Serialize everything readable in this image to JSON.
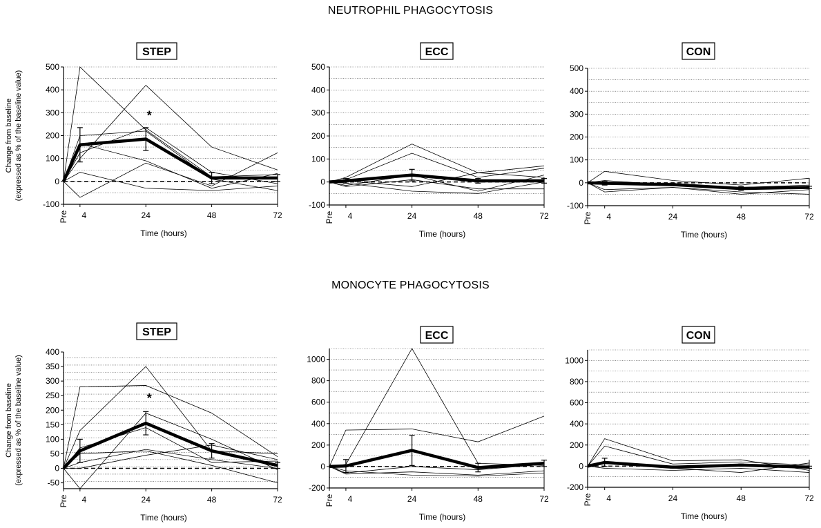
{
  "figure": {
    "section_titles": [
      "NEUTROPHIL PHAGOCYTOSIS",
      "MONOCYTE PHAGOCYTOSIS"
    ],
    "ylabel_lines": [
      "Change from baseline",
      "(expressed as % of the baseline value)"
    ]
  },
  "chart_data": [
    {
      "type": "line",
      "section": "NEUTROPHIL PHAGOCYTOSIS",
      "title": "STEP",
      "xlabel": "Time (hours)",
      "ylabel": "Change from baseline (expressed as % of the baseline value)",
      "x": [
        -6,
        0,
        24,
        48,
        72
      ],
      "xtick_labels": [
        "Pre",
        "4",
        "24",
        "48",
        "72"
      ],
      "ylim": [
        -100,
        500
      ],
      "yticks": [
        -100,
        0,
        100,
        200,
        300,
        400,
        500
      ],
      "grid": true,
      "mean": {
        "values": [
          0,
          160,
          185,
          15,
          15
        ],
        "err": [
          0,
          75,
          50,
          25,
          15
        ]
      },
      "individual": [
        [
          0,
          505,
          225,
          20,
          30
        ],
        [
          0,
          100,
          420,
          150,
          50
        ],
        [
          0,
          -70,
          80,
          -20,
          125
        ],
        [
          0,
          165,
          90,
          -30,
          35
        ],
        [
          0,
          125,
          235,
          40,
          -10
        ],
        [
          0,
          200,
          220,
          10,
          -40
        ],
        [
          0,
          40,
          -30,
          -40,
          -20
        ]
      ],
      "significant": [
        {
          "x": 24,
          "y": 300,
          "label": "*"
        }
      ]
    },
    {
      "type": "line",
      "section": "NEUTROPHIL PHAGOCYTOSIS",
      "title": "ECC",
      "xlabel": "Time (hours)",
      "ylabel": "",
      "x": [
        -6,
        0,
        24,
        48,
        72
      ],
      "xtick_labels": [
        "Pre",
        "4",
        "24",
        "48",
        "72"
      ],
      "ylim": [
        -100,
        500
      ],
      "yticks": [
        -100,
        0,
        100,
        200,
        300,
        400,
        500
      ],
      "grid": true,
      "mean": {
        "values": [
          0,
          5,
          30,
          5,
          5
        ],
        "err": [
          0,
          10,
          25,
          10,
          10
        ]
      },
      "individual": [
        [
          0,
          20,
          165,
          40,
          70
        ],
        [
          0,
          10,
          125,
          20,
          60
        ],
        [
          0,
          -15,
          30,
          -40,
          30
        ],
        [
          0,
          -20,
          10,
          -30,
          -30
        ],
        [
          0,
          5,
          -20,
          40,
          20
        ],
        [
          0,
          -5,
          -40,
          -50,
          0
        ]
      ]
    },
    {
      "type": "line",
      "section": "NEUTROPHIL PHAGOCYTOSIS",
      "title": "CON",
      "xlabel": "Time (hours)",
      "ylabel": "",
      "x": [
        -6,
        0,
        24,
        48,
        72
      ],
      "xtick_labels": [
        "Pre",
        "4",
        "24",
        "48",
        "72"
      ],
      "ylim": [
        -100,
        500
      ],
      "yticks": [
        -100,
        0,
        100,
        200,
        300,
        400,
        500
      ],
      "grid": true,
      "mean": {
        "values": [
          0,
          -2,
          -8,
          -25,
          -20
        ],
        "err": [
          0,
          8,
          5,
          8,
          5
        ]
      },
      "individual": [
        [
          0,
          50,
          10,
          -10,
          20
        ],
        [
          0,
          -30,
          -20,
          -50,
          -30
        ],
        [
          0,
          10,
          -10,
          -20,
          -10
        ],
        [
          0,
          -40,
          -20,
          -40,
          -50
        ]
      ]
    },
    {
      "type": "line",
      "section": "MONOCYTE PHAGOCYTOSIS",
      "title": "STEP",
      "xlabel": "Time (hours)",
      "ylabel": "Change from baseline (expressed as % of the baseline value)",
      "x": [
        -6,
        0,
        24,
        48,
        72
      ],
      "xtick_labels": [
        "Pre",
        "4",
        "24",
        "48",
        "72"
      ],
      "ylim": [
        -70,
        400
      ],
      "yticks": [
        -50,
        0,
        50,
        100,
        150,
        200,
        250,
        300,
        350,
        400
      ],
      "grid": true,
      "mean": {
        "values": [
          0,
          60,
          155,
          60,
          10
        ],
        "err": [
          0,
          40,
          40,
          25,
          10
        ]
      },
      "individual": [
        [
          0,
          280,
          285,
          190,
          40
        ],
        [
          0,
          130,
          350,
          60,
          50
        ],
        [
          0,
          -80,
          190,
          100,
          -5
        ],
        [
          0,
          70,
          140,
          20,
          25
        ],
        [
          0,
          20,
          65,
          30,
          0
        ],
        [
          0,
          50,
          60,
          10,
          -50
        ],
        [
          0,
          0,
          45,
          80,
          30
        ]
      ],
      "significant": [
        {
          "x": 24,
          "y": 250,
          "label": "*"
        }
      ]
    },
    {
      "type": "line",
      "section": "MONOCYTE PHAGOCYTOSIS",
      "title": "ECC",
      "xlabel": "Time (hours)",
      "ylabel": "",
      "x": [
        -6,
        0,
        24,
        48,
        72
      ],
      "xtick_labels": [
        "Pre",
        "4",
        "24",
        "48",
        "72"
      ],
      "ylim": [
        -200,
        1100
      ],
      "yticks": [
        -200,
        0,
        200,
        400,
        600,
        800,
        1000
      ],
      "grid": true,
      "mean": {
        "values": [
          0,
          5,
          150,
          -10,
          30
        ],
        "err": [
          0,
          60,
          140,
          40,
          30
        ]
      },
      "individual": [
        [
          0,
          20,
          1100,
          30,
          10
        ],
        [
          0,
          340,
          350,
          230,
          470
        ],
        [
          0,
          -60,
          0,
          -30,
          20
        ],
        [
          0,
          -70,
          -50,
          -80,
          -40
        ],
        [
          0,
          -40,
          -80,
          -90,
          -60
        ]
      ]
    },
    {
      "type": "line",
      "section": "MONOCYTE PHAGOCYTOSIS",
      "title": "CON",
      "xlabel": "Time (hours)",
      "ylabel": "",
      "x": [
        -6,
        0,
        24,
        48,
        72
      ],
      "xtick_labels": [
        "Pre",
        "4",
        "24",
        "48",
        "72"
      ],
      "ylim": [
        -200,
        1100
      ],
      "yticks": [
        -200,
        0,
        200,
        400,
        600,
        800,
        1000
      ],
      "grid": true,
      "mean": {
        "values": [
          0,
          35,
          -10,
          10,
          -10
        ],
        "err": [
          0,
          40,
          10,
          10,
          10
        ]
      },
      "individual": [
        [
          0,
          260,
          50,
          60,
          -40
        ],
        [
          0,
          190,
          20,
          40,
          10
        ],
        [
          0,
          -20,
          -40,
          -20,
          -60
        ],
        [
          0,
          40,
          -20,
          -60,
          30
        ]
      ]
    }
  ]
}
